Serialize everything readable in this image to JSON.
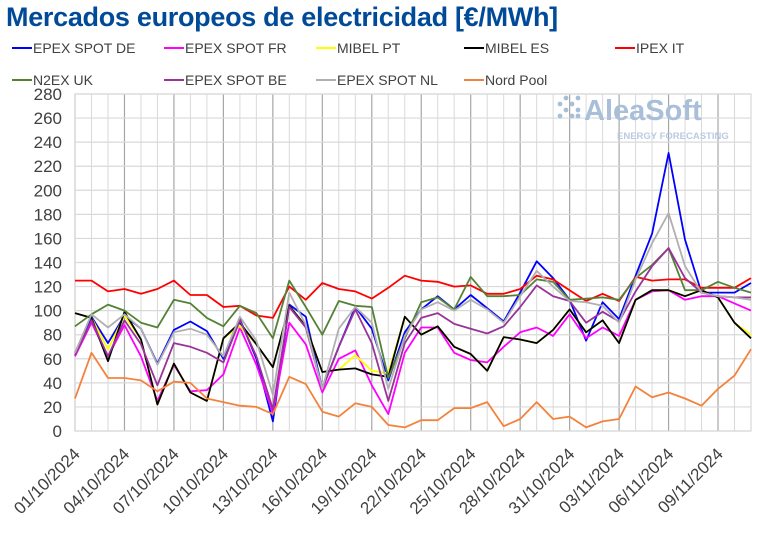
{
  "chart_data": {
    "type": "line",
    "title": "Mercados europeos de electricidad [€/MWh]",
    "xlabel": "",
    "ylabel": "",
    "ylim": [
      0,
      280
    ],
    "yticks": [
      0,
      20,
      40,
      60,
      80,
      100,
      120,
      140,
      160,
      180,
      200,
      220,
      240,
      260,
      280
    ],
    "grid": true,
    "legend_position": "top",
    "x": [
      "01/10/2024",
      "02/10/2024",
      "03/10/2024",
      "04/10/2024",
      "05/10/2024",
      "06/10/2024",
      "07/10/2024",
      "08/10/2024",
      "09/10/2024",
      "10/10/2024",
      "11/10/2024",
      "12/10/2024",
      "13/10/2024",
      "14/10/2024",
      "15/10/2024",
      "16/10/2024",
      "17/10/2024",
      "18/10/2024",
      "19/10/2024",
      "20/10/2024",
      "21/10/2024",
      "22/10/2024",
      "23/10/2024",
      "24/10/2024",
      "25/10/2024",
      "26/10/2024",
      "27/10/2024",
      "28/10/2024",
      "29/10/2024",
      "30/10/2024",
      "31/10/2024",
      "01/11/2024",
      "02/11/2024",
      "03/11/2024",
      "04/11/2024",
      "05/11/2024",
      "06/11/2024",
      "07/11/2024",
      "08/11/2024",
      "09/11/2024",
      "10/11/2024",
      "11/11/2024"
    ],
    "xtick_labels": [
      "01/10/2024",
      "04/10/2024",
      "07/10/2024",
      "10/10/2024",
      "13/10/2024",
      "16/10/2024",
      "19/10/2024",
      "22/10/2024",
      "25/10/2024",
      "28/10/2024",
      "31/10/2024",
      "03/11/2024",
      "06/11/2024",
      "09/11/2024"
    ],
    "series": [
      {
        "name": "EPEX SPOT DE",
        "color": "#0000ff",
        "values": [
          65,
          95,
          73,
          96,
          85,
          56,
          84,
          91,
          83,
          60,
          93,
          60,
          8,
          105,
          95,
          35,
          70,
          103,
          85,
          42,
          82,
          101,
          112,
          101,
          113,
          102,
          91,
          115,
          141,
          127,
          109,
          75,
          107,
          93,
          129,
          164,
          231,
          159,
          115,
          115,
          115,
          123
        ]
      },
      {
        "name": "EPEX SPOT FR",
        "color": "#ff00ff",
        "values": [
          62,
          90,
          62,
          88,
          62,
          25,
          55,
          33,
          34,
          47,
          86,
          55,
          15,
          90,
          72,
          32,
          60,
          67,
          38,
          14,
          65,
          86,
          86,
          65,
          59,
          57,
          70,
          82,
          86,
          79,
          97,
          77,
          86,
          79,
          109,
          116,
          117,
          109,
          112,
          112,
          106,
          100
        ]
      },
      {
        "name": "MIBEL PT",
        "color": "#ffff00",
        "values": [
          98,
          94,
          68,
          96,
          76,
          22,
          56,
          32,
          25,
          77,
          87,
          72,
          53,
          104,
          87,
          49,
          51,
          63,
          50,
          48,
          95,
          80,
          87,
          70,
          64,
          50,
          78,
          76,
          73,
          84,
          101,
          82,
          92,
          73,
          109,
          117,
          117,
          112,
          117,
          111,
          90,
          80
        ]
      },
      {
        "name": "MIBEL ES",
        "color": "#000000",
        "values": [
          98,
          94,
          58,
          99,
          76,
          22,
          56,
          32,
          25,
          77,
          90,
          72,
          53,
          104,
          87,
          49,
          51,
          52,
          47,
          45,
          95,
          80,
          87,
          70,
          64,
          50,
          78,
          76,
          73,
          84,
          101,
          82,
          92,
          73,
          109,
          117,
          117,
          112,
          117,
          111,
          90,
          77
        ]
      },
      {
        "name": "IPEX IT",
        "color": "#ff0000",
        "values": [
          125,
          125,
          116,
          118,
          114,
          118,
          125,
          113,
          113,
          103,
          104,
          96,
          94,
          120,
          109,
          123,
          118,
          116,
          110,
          119,
          129,
          125,
          124,
          120,
          121,
          114,
          114,
          118,
          129,
          126,
          117,
          108,
          114,
          108,
          128,
          125,
          126,
          126,
          119,
          119,
          119,
          127
        ]
      },
      {
        "name": "N2EX UK",
        "color": "#548235",
        "values": [
          87,
          97,
          105,
          100,
          90,
          86,
          109,
          106,
          94,
          87,
          104,
          98,
          77,
          125,
          103,
          80,
          108,
          104,
          103,
          44,
          77,
          107,
          111,
          101,
          128,
          112,
          112,
          113,
          126,
          124,
          109,
          110,
          111,
          109,
          127,
          138,
          152,
          117,
          117,
          124,
          119,
          115
        ]
      },
      {
        "name": "EPEX SPOT BE",
        "color": "#993399",
        "values": [
          63,
          92,
          62,
          92,
          72,
          38,
          73,
          70,
          65,
          57,
          92,
          62,
          18,
          103,
          86,
          35,
          70,
          101,
          73,
          25,
          73,
          94,
          98,
          89,
          85,
          81,
          87,
          103,
          121,
          112,
          108,
          90,
          99,
          91,
          116,
          137,
          152,
          127,
          115,
          112,
          111,
          111
        ]
      },
      {
        "name": "EPEX SPOT NL",
        "color": "#b0b0b0",
        "values": [
          65,
          97,
          86,
          97,
          85,
          55,
          82,
          85,
          80,
          62,
          95,
          75,
          30,
          115,
          88,
          35,
          85,
          103,
          90,
          35,
          79,
          101,
          107,
          100,
          109,
          101,
          90,
          112,
          133,
          120,
          108,
          107,
          104,
          90,
          126,
          156,
          181,
          137,
          115,
          112,
          111,
          109
        ]
      },
      {
        "name": "Nord Pool",
        "color": "#f4823c",
        "values": [
          27,
          65,
          44,
          44,
          42,
          33,
          41,
          40,
          27,
          24,
          21,
          20,
          14,
          45,
          39,
          16,
          12,
          23,
          20,
          5,
          3,
          9,
          9,
          19,
          19,
          24,
          4,
          10,
          24,
          10,
          12,
          3,
          8,
          10,
          37,
          28,
          32,
          27,
          21,
          35,
          46,
          68
        ]
      }
    ]
  },
  "watermark": {
    "brand": "AleaSoft",
    "tagline": "ENERGY FORECASTING"
  }
}
